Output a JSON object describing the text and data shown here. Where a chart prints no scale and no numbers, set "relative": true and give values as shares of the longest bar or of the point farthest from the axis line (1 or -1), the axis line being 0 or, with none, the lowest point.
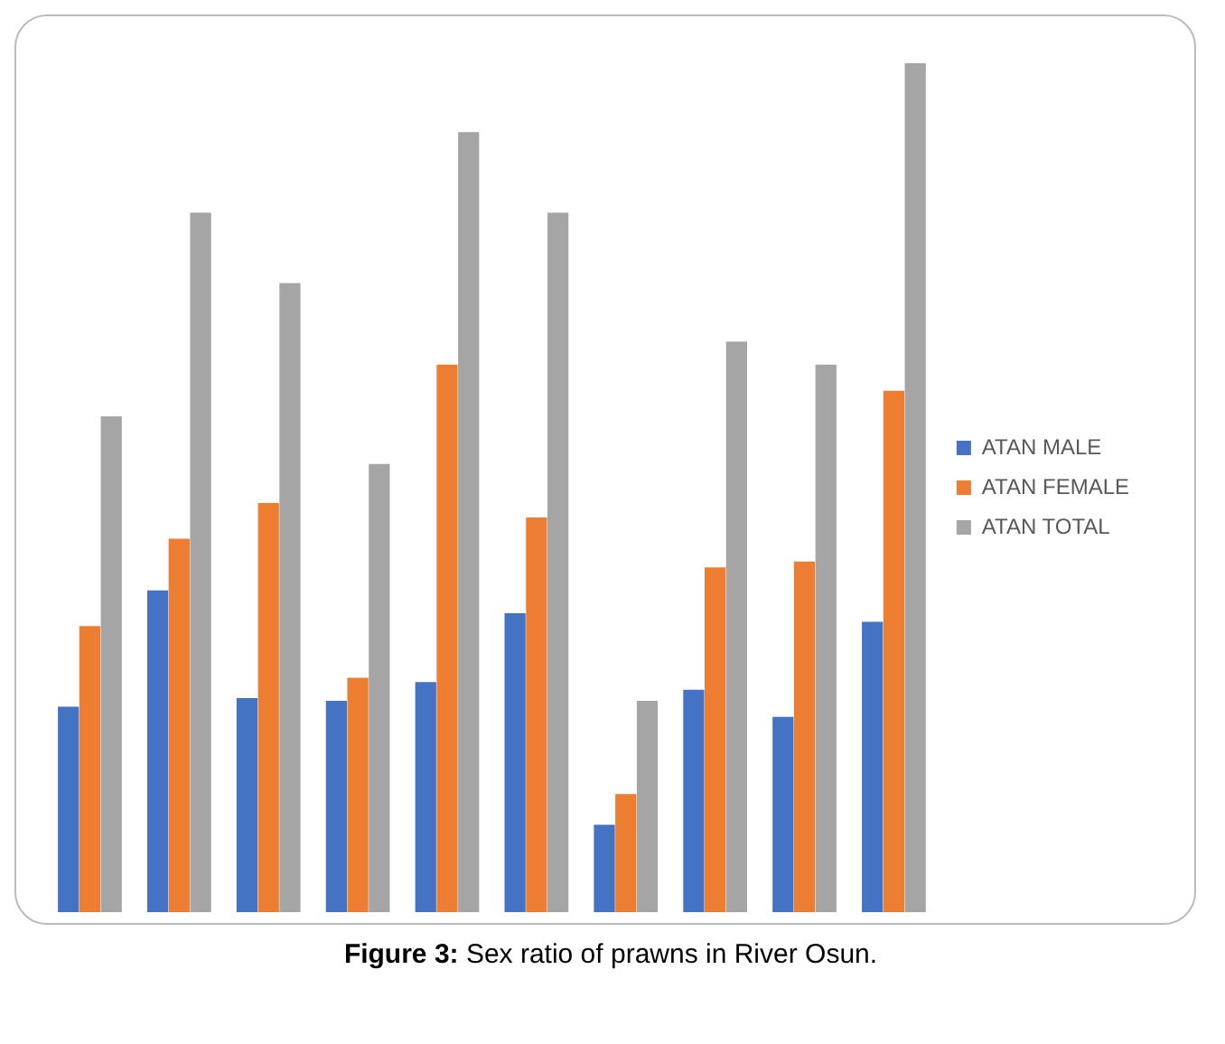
{
  "chart_data": {
    "type": "bar",
    "title": "Figure 3: Sex ratio of prawns in River Osun.",
    "relative": true,
    "categories": [
      null,
      null,
      null,
      null,
      null,
      null,
      null,
      null,
      null,
      null
    ],
    "legend": "right",
    "series": [
      {
        "name": "ATAN MALE",
        "color": "#4472c4",
        "values": [
          0.242,
          0.379,
          0.252,
          0.249,
          0.271,
          0.352,
          0.103,
          0.262,
          0.23,
          0.342
        ]
      },
      {
        "name": "ATAN FEMALE",
        "color": "#ed7d31",
        "values": [
          0.337,
          0.44,
          0.482,
          0.276,
          0.645,
          0.465,
          0.139,
          0.406,
          0.413,
          0.614
        ]
      },
      {
        "name": "ATAN TOTAL",
        "color": "#a5a5a5",
        "values": [
          0.584,
          0.824,
          0.741,
          0.528,
          0.919,
          0.824,
          0.249,
          0.672,
          0.645,
          1
        ]
      }
    ]
  }
}
